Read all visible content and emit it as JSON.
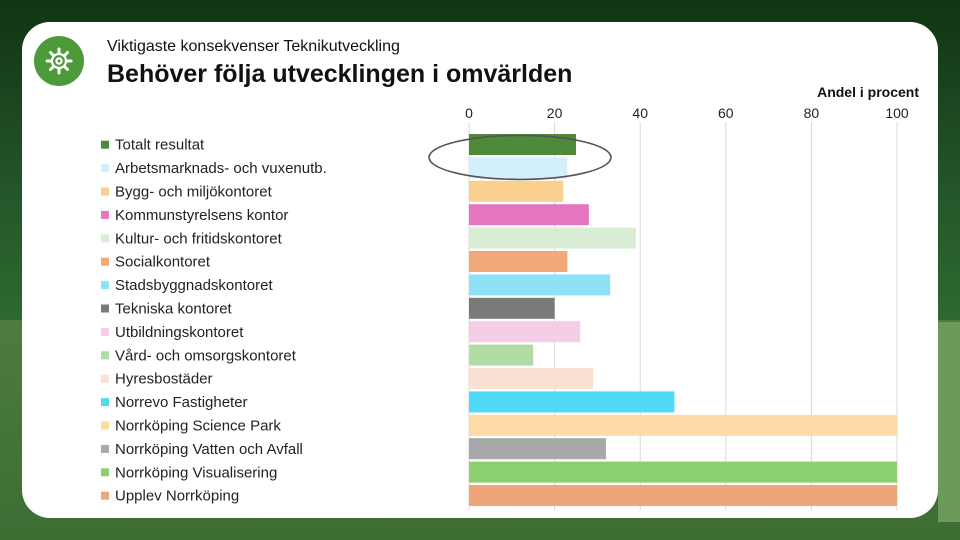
{
  "header": {
    "subtitle": "Viktigaste konsekvenser Teknikutveckling",
    "title": "Behöver följa utvecklingen i omvärlden"
  },
  "logo": {
    "icon": "gear-icon",
    "color": "#4d9a3a"
  },
  "chart_data": {
    "type": "bar",
    "orientation": "horizontal",
    "title": "",
    "xlabel": "Andel i procent",
    "ylabel": "",
    "xlim": [
      0,
      100
    ],
    "x_ticks": [
      "0",
      "20",
      "40",
      "60",
      "80",
      "100"
    ],
    "x_axis_position": "top",
    "grid": true,
    "legend_placement": "left",
    "highlight": {
      "shape": "ellipse",
      "categories": [
        "Totalt resultat",
        "Arbetsmarknads- och vuxenutb."
      ]
    },
    "categories": [
      "Totalt resultat",
      "Arbetsmarknads- och vuxenutb.",
      "Bygg- och miljökontoret",
      "Kommunstyrelsens kontor",
      "Kultur- och fritidskontoret",
      "Socialkontoret",
      "Stadsbyggnadskontoret",
      "Tekniska kontoret",
      "Utbildningskontoret",
      "Vård- och omsorgskontoret",
      "Hyresbostäder",
      "Norrevo Fastigheter",
      "Norrköping Science Park",
      "Norrköping Vatten och Avfall",
      "Norrköping Visualisering",
      "Upplev Norrköping"
    ],
    "values": [
      25,
      23,
      22,
      28,
      39,
      23,
      33,
      20,
      26,
      15,
      29,
      48,
      100,
      32,
      100,
      100
    ],
    "colors": [
      "#4e8a3a",
      "#d2effb",
      "#f8cf8c",
      "#e476c0",
      "#d9ecd4",
      "#f2a87a",
      "#8fe1f6",
      "#7a7a7a",
      "#f6cde6",
      "#b1dca3",
      "#f9e0d3",
      "#4fdaf6",
      "#fddaa6",
      "#a8a8a8",
      "#8bcf6e",
      "#eea57a"
    ]
  }
}
